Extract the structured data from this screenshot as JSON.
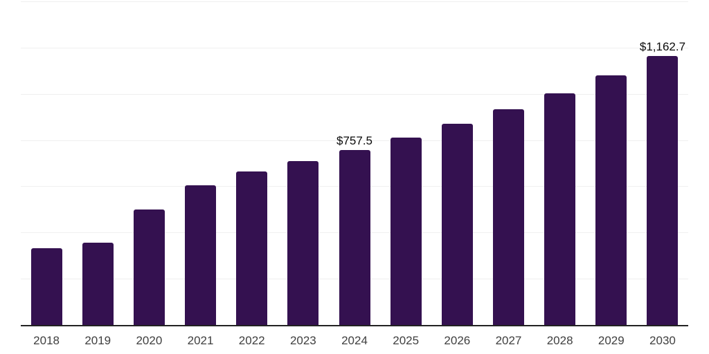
{
  "chart_data": {
    "type": "bar",
    "title": "",
    "xlabel": "",
    "ylabel": "",
    "categories": [
      "2018",
      "2019",
      "2020",
      "2021",
      "2022",
      "2023",
      "2024",
      "2025",
      "2026",
      "2027",
      "2028",
      "2029",
      "2030"
    ],
    "values": [
      332,
      355,
      499,
      603,
      663,
      709,
      757.5,
      810,
      870,
      932,
      1001,
      1079,
      1162.7
    ],
    "data_labels": [
      "",
      "",
      "",
      "",
      "",
      "",
      "$757.5",
      "",
      "",
      "",
      "",
      "",
      "$1,162.7"
    ],
    "ylim": [
      0,
      1400
    ],
    "grid_step": 200,
    "grid_on": true,
    "legend": "none",
    "bar_color": "#341150",
    "grid_color": "#efefef",
    "axis_line_color": "#222222",
    "tick_label_color": "#3f3f3f",
    "value_label_color": "#0a0a0a",
    "background_color": "#ffffff"
  }
}
